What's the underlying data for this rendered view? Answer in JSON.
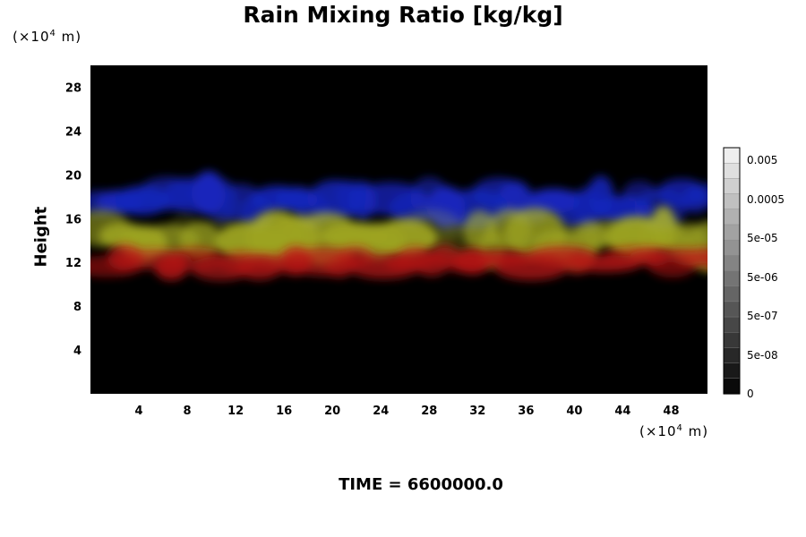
{
  "chart_data": {
    "type": "heatmap",
    "title": "Rain Mixing Ratio [kg/kg]",
    "ylabel": "Height",
    "x_unit_prefix": "(×10",
    "x_unit_exp": "4",
    "x_unit_suffix": " m)",
    "y_unit_prefix": "(×10",
    "y_unit_exp": "4",
    "y_unit_suffix": " m)",
    "xlim": [
      0,
      51
    ],
    "ylim": [
      0,
      30
    ],
    "x_ticks": [
      4,
      8,
      12,
      16,
      20,
      24,
      28,
      32,
      36,
      40,
      44,
      48
    ],
    "y_ticks": [
      4,
      8,
      12,
      16,
      20,
      24,
      28
    ],
    "colorbar_labels": [
      "0.005",
      "0.0005",
      "5e-05",
      "5e-06",
      "5e-07",
      "5e-08",
      "0"
    ],
    "colorbar_levels": 16,
    "layers": [
      {
        "color": "#1a2ad0",
        "y_range": [
          16,
          19
        ]
      },
      {
        "color": "#b8c028",
        "y_range": [
          12.5,
          16
        ]
      },
      {
        "color": "#c01818",
        "y_range": [
          11,
          13
        ]
      }
    ],
    "footer": "TIME = 6600000.0"
  }
}
